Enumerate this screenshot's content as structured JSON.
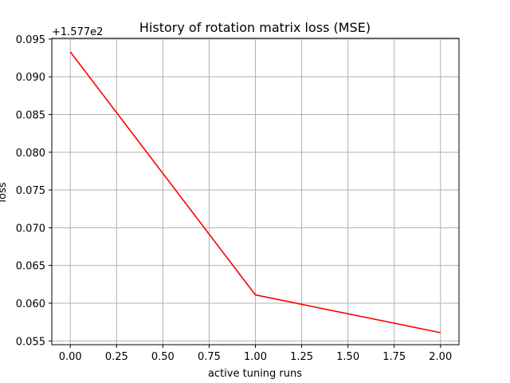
{
  "chart_data": {
    "type": "line",
    "title": "History of rotation matrix loss (MSE)",
    "xlabel": "active tuning runs",
    "ylabel": "loss",
    "y_offset_label": "+1.577e2",
    "y_offset": 157.7,
    "xlim": [
      -0.1,
      2.1
    ],
    "ylim": [
      0.0545,
      0.0951
    ],
    "xticks": [
      0.0,
      0.25,
      0.5,
      0.75,
      1.0,
      1.25,
      1.5,
      1.75,
      2.0
    ],
    "xtick_labels": [
      "0.00",
      "0.25",
      "0.50",
      "0.75",
      "1.00",
      "1.25",
      "1.50",
      "1.75",
      "2.00"
    ],
    "yticks": [
      0.055,
      0.06,
      0.065,
      0.07,
      0.075,
      0.08,
      0.085,
      0.09,
      0.095
    ],
    "ytick_labels": [
      "0.055",
      "0.060",
      "0.065",
      "0.070",
      "0.075",
      "0.080",
      "0.085",
      "0.090",
      "0.095"
    ],
    "grid": true,
    "series": [
      {
        "color": "#ff0000",
        "x": [
          0,
          1,
          2
        ],
        "y": [
          0.0933,
          0.0611,
          0.0561
        ]
      }
    ]
  }
}
